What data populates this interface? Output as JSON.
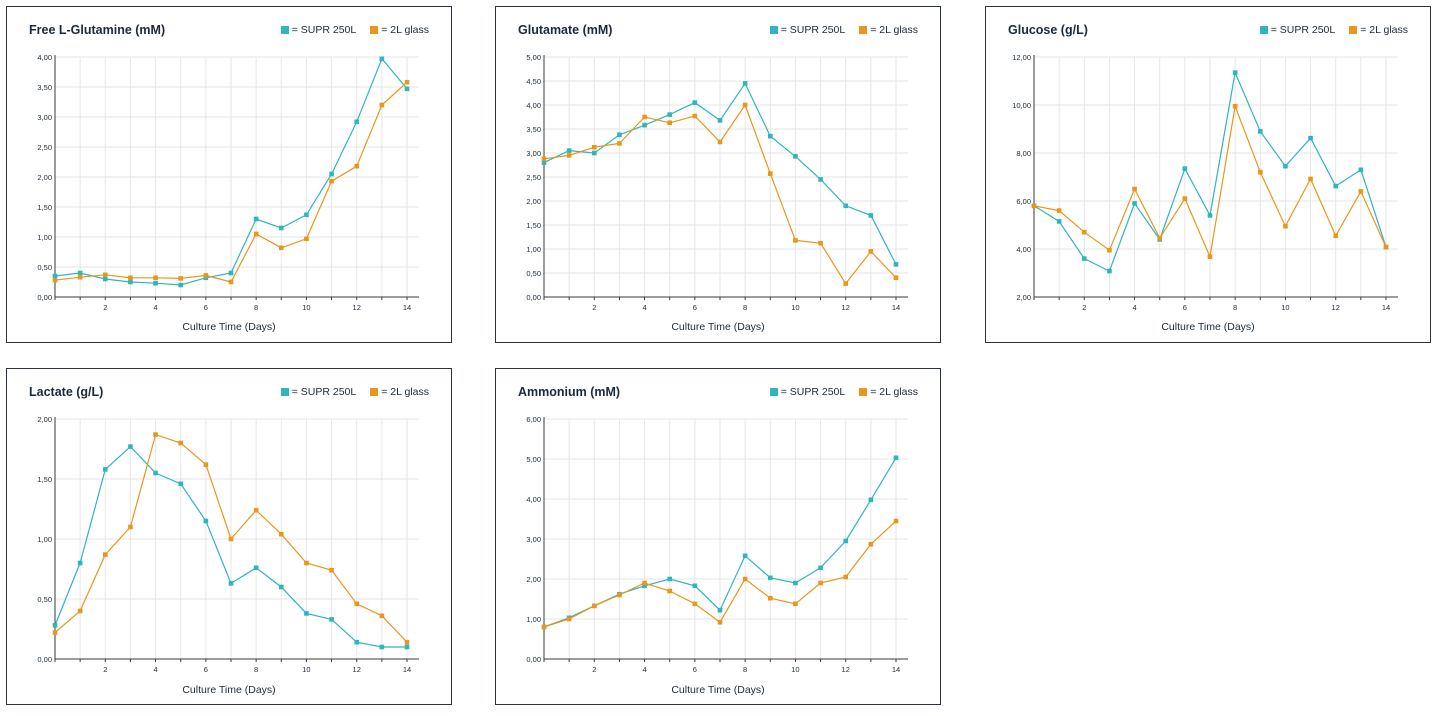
{
  "colors": {
    "supr": "#2fb5bd",
    "glass": "#e8961c",
    "grid": "#e6e6e6",
    "axis": "#3a3a3a"
  },
  "legend": {
    "supr": "= SUPR 250L",
    "glass": "= 2L glass"
  },
  "x_label": "Culture Time (Days)",
  "chart_data": [
    {
      "type": "line",
      "title": "Free L-Glutamine (mM)",
      "xlabel": "Culture Time (Days)",
      "x": [
        0,
        1,
        2,
        3,
        4,
        5,
        6,
        7,
        8,
        9,
        10,
        11,
        12,
        13,
        14
      ],
      "xticks": [
        2,
        4,
        6,
        8,
        10,
        12,
        14
      ],
      "ylim": [
        0,
        4
      ],
      "yticks": [
        "0,00",
        "0,50",
        "1,00",
        "1,50",
        "2,00",
        "2,50",
        "3,00",
        "3,50",
        "4,00"
      ],
      "series": [
        {
          "name": "= SUPR 250L",
          "values": [
            0.35,
            0.4,
            0.3,
            0.25,
            0.23,
            0.2,
            0.32,
            0.4,
            1.3,
            1.15,
            1.37,
            2.05,
            2.92,
            3.97,
            3.47
          ]
        },
        {
          "name": "= 2L glass",
          "values": [
            0.28,
            0.33,
            0.37,
            0.32,
            0.32,
            0.31,
            0.36,
            0.25,
            1.05,
            0.82,
            0.97,
            1.93,
            2.18,
            3.2,
            3.58
          ]
        }
      ]
    },
    {
      "type": "line",
      "title": "Glutamate (mM)",
      "xlabel": "Culture Time (Days)",
      "x": [
        0,
        1,
        2,
        3,
        4,
        5,
        6,
        7,
        8,
        9,
        10,
        11,
        12,
        13,
        14
      ],
      "xticks": [
        2,
        4,
        6,
        8,
        10,
        12,
        14
      ],
      "ylim": [
        0,
        5
      ],
      "yticks": [
        "0,00",
        "0,50",
        "1,00",
        "1,50",
        "2,00",
        "2,50",
        "3,00",
        "3,50",
        "4,00",
        "4,50",
        "5,00"
      ],
      "series": [
        {
          "name": "= SUPR 250L",
          "values": [
            2.8,
            3.05,
            3.0,
            3.38,
            3.58,
            3.8,
            4.05,
            3.68,
            4.45,
            3.35,
            2.93,
            2.45,
            1.9,
            1.7,
            0.68
          ]
        },
        {
          "name": "= 2L glass",
          "values": [
            2.88,
            2.95,
            3.12,
            3.2,
            3.75,
            3.63,
            3.77,
            3.23,
            4.0,
            2.57,
            1.18,
            1.12,
            0.28,
            0.95,
            0.4
          ]
        }
      ]
    },
    {
      "type": "line",
      "title": "Glucose (g/L)",
      "xlabel": "Culture Time (Days)",
      "x": [
        0,
        1,
        2,
        3,
        4,
        5,
        6,
        7,
        8,
        9,
        10,
        11,
        12,
        13,
        14
      ],
      "xticks": [
        2,
        4,
        6,
        8,
        10,
        12,
        14
      ],
      "ylim": [
        2,
        12
      ],
      "yticks": [
        "2,00",
        "4,00",
        "6,00",
        "8,00",
        "10,00",
        "12,00"
      ],
      "series": [
        {
          "name": "= SUPR 250L",
          "values": [
            5.8,
            5.15,
            3.6,
            3.08,
            5.9,
            4.4,
            7.35,
            5.4,
            11.35,
            8.9,
            7.45,
            8.62,
            6.62,
            7.3,
            4.08
          ]
        },
        {
          "name": "= 2L glass",
          "values": [
            5.8,
            5.6,
            4.7,
            3.95,
            6.5,
            4.45,
            6.1,
            3.68,
            9.95,
            7.2,
            4.95,
            6.92,
            4.55,
            6.4,
            4.08
          ]
        }
      ]
    },
    {
      "type": "line",
      "title": "Lactate (g/L)",
      "xlabel": "Culture Time (Days)",
      "x": [
        0,
        1,
        2,
        3,
        4,
        5,
        6,
        7,
        8,
        9,
        10,
        11,
        12,
        13,
        14
      ],
      "xticks": [
        2,
        4,
        6,
        8,
        10,
        12,
        14
      ],
      "ylim": [
        0,
        2
      ],
      "yticks": [
        "0,00",
        "0,50",
        "1,00",
        "1,50",
        "2,00"
      ],
      "series": [
        {
          "name": "= SUPR 250L",
          "values": [
            0.28,
            0.8,
            1.58,
            1.77,
            1.55,
            1.46,
            1.15,
            0.63,
            0.76,
            0.6,
            0.38,
            0.33,
            0.14,
            0.1,
            0.1
          ]
        },
        {
          "name": "= 2L glass",
          "values": [
            0.22,
            0.4,
            0.87,
            1.1,
            1.87,
            1.8,
            1.62,
            1.0,
            1.24,
            1.04,
            0.8,
            0.74,
            0.46,
            0.36,
            0.14
          ]
        }
      ]
    },
    {
      "type": "line",
      "title": "Ammonium (mM)",
      "xlabel": "Culture Time (Days)",
      "x": [
        0,
        1,
        2,
        3,
        4,
        5,
        6,
        7,
        8,
        9,
        10,
        11,
        12,
        13,
        14
      ],
      "xticks": [
        2,
        4,
        6,
        8,
        10,
        12,
        14
      ],
      "ylim": [
        0,
        6
      ],
      "yticks": [
        "0,00",
        "1,00",
        "2,00",
        "3,00",
        "4,00",
        "5,00",
        "6,00"
      ],
      "series": [
        {
          "name": "= SUPR 250L",
          "values": [
            0.8,
            1.03,
            1.33,
            1.62,
            1.83,
            2.0,
            1.83,
            1.22,
            2.58,
            2.03,
            1.9,
            2.28,
            2.95,
            3.98,
            5.03
          ]
        },
        {
          "name": "= 2L glass",
          "values": [
            0.8,
            1.0,
            1.33,
            1.6,
            1.9,
            1.7,
            1.38,
            0.92,
            2.0,
            1.52,
            1.38,
            1.9,
            2.05,
            2.87,
            3.45
          ]
        }
      ]
    }
  ]
}
